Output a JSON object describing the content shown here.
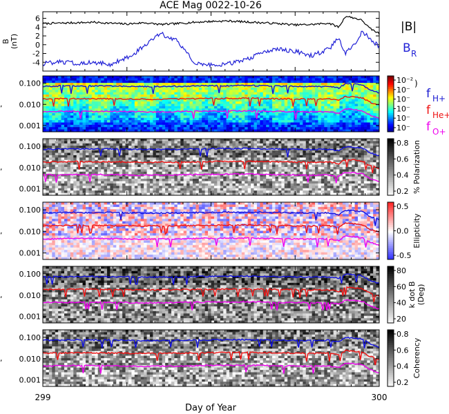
{
  "figure": {
    "title": "ACE Mag 0022-10-26",
    "xlabel": "Day of Year",
    "x_ticks": [
      "299",
      "300"
    ]
  },
  "legend": {
    "b_total": "|B|",
    "b_radial": "B",
    "b_radial_sub": "R",
    "f_h": "f",
    "f_h_sub": "H+",
    "f_he": "f",
    "f_he_sub": "He+",
    "f_o": "f",
    "f_o_sub": "O+"
  },
  "colors": {
    "b_total": "#000000",
    "b_radial": "#1f1fd6",
    "f_h": "#1010e0",
    "f_he": "#ee1111",
    "f_o": "#ee00ee",
    "legend_h": "#1a1ad0",
    "legend_he": "#ee1111",
    "legend_o": "#ee00ee"
  },
  "chart_data": [
    {
      "type": "line",
      "panel": "magnetic-field",
      "ylabel": "B",
      "yunit": "(nT)",
      "ylim": [
        -6,
        7.5
      ],
      "y_ticks": [
        "6",
        "4",
        "2",
        "0",
        "-2",
        "-4"
      ],
      "x": [
        299.0,
        299.05,
        299.1,
        299.15,
        299.2,
        299.25,
        299.3,
        299.35,
        299.4,
        299.45,
        299.5,
        299.55,
        299.6,
        299.65,
        299.7,
        299.75,
        299.8,
        299.85,
        299.88,
        299.9,
        299.93,
        299.95,
        299.97,
        300.0
      ],
      "series": [
        {
          "name": "|B|",
          "values": [
            4.8,
            4.9,
            5.0,
            5.1,
            4.9,
            4.7,
            5.0,
            4.6,
            4.8,
            5.1,
            5.3,
            5.4,
            5.2,
            5.0,
            4.8,
            4.5,
            4.6,
            4.9,
            4.0,
            6.5,
            6.0,
            5.5,
            3.8,
            2.5
          ]
        },
        {
          "name": "B_R",
          "values": [
            -4.3,
            -3.9,
            -4.2,
            -4.0,
            -4.5,
            -3.0,
            -0.5,
            2.5,
            1.0,
            -4.2,
            -4.6,
            -4.4,
            -3.5,
            -2.0,
            -1.0,
            -1.5,
            -2.5,
            -1.0,
            1.5,
            -2.0,
            0.5,
            3.0,
            1.5,
            -0.5
          ]
        }
      ]
    },
    {
      "type": "heatmap",
      "panel": "power-spectrum",
      "colorbar_ticks": [
        "10⁻²",
        "10⁻",
        "10⁻",
        "10⁻",
        "10⁻",
        "10⁻"
      ],
      "y_ticks": [
        "0.100",
        "0.010",
        "0.001"
      ]
    },
    {
      "type": "heatmap",
      "panel": "polarization",
      "colorbar_label": "% Polarization",
      "colorbar_ticks": [
        "0.8",
        "0.6",
        "0.4",
        "0.2"
      ],
      "y_ticks": [
        "0.100",
        "0.010",
        "0.001"
      ]
    },
    {
      "type": "heatmap",
      "panel": "ellipticity",
      "colorbar_label": "Ellipticity",
      "colorbar_ticks": [
        "0.5",
        "0.0",
        "-0.5"
      ],
      "y_ticks": [
        "0.100",
        "0.010",
        "0.001"
      ]
    },
    {
      "type": "heatmap",
      "panel": "wave-normal-angle",
      "colorbar_label": "k dot B",
      "colorbar_label2": "(Deg)",
      "colorbar_ticks": [
        "80",
        "60",
        "40",
        "20"
      ],
      "y_ticks": [
        "0.100",
        "0.010",
        "0.001"
      ]
    },
    {
      "type": "heatmap",
      "panel": "coherency",
      "colorbar_label": "Coherency",
      "colorbar_ticks": [
        "0.8",
        "0.6",
        "0.4",
        "0.2"
      ],
      "y_ticks": [
        "0.100",
        "0.010",
        "0.001"
      ]
    },
    {
      "type": "line",
      "panel": "gyrofrequencies",
      "x": [
        299.0,
        299.1,
        299.2,
        299.3,
        299.4,
        299.5,
        299.6,
        299.7,
        299.8,
        299.85,
        299.88,
        299.9,
        299.93,
        299.95,
        299.97,
        300.0
      ],
      "series": [
        {
          "name": "f_H+",
          "values": [
            0.072,
            0.075,
            0.074,
            0.07,
            0.072,
            0.076,
            0.078,
            0.074,
            0.07,
            0.072,
            0.06,
            0.095,
            0.09,
            0.08,
            0.05,
            0.035
          ]
        },
        {
          "name": "f_He+",
          "values": [
            0.018,
            0.019,
            0.0185,
            0.0175,
            0.018,
            0.019,
            0.0195,
            0.0185,
            0.0175,
            0.018,
            0.015,
            0.024,
            0.022,
            0.02,
            0.013,
            0.009
          ]
        },
        {
          "name": "f_O+",
          "values": [
            0.0045,
            0.0047,
            0.0046,
            0.0044,
            0.0045,
            0.0048,
            0.0049,
            0.0046,
            0.0044,
            0.0045,
            0.0038,
            0.006,
            0.0056,
            0.005,
            0.0032,
            0.0022
          ]
        }
      ]
    }
  ]
}
